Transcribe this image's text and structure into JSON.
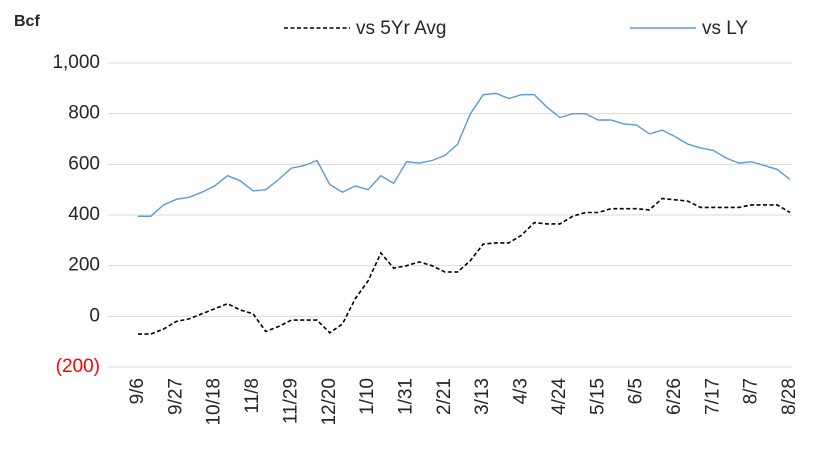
{
  "chart_data": {
    "type": "line",
    "y_label": "Bcf",
    "categories": [
      "9/6",
      null,
      null,
      "9/27",
      null,
      null,
      "10/18",
      null,
      null,
      "11/8",
      null,
      null,
      "11/29",
      null,
      null,
      "12/20",
      null,
      null,
      "1/10",
      null,
      null,
      "1/31",
      null,
      null,
      "2/21",
      null,
      null,
      "3/13",
      null,
      null,
      "4/3",
      null,
      null,
      "4/24",
      null,
      null,
      "5/15",
      null,
      null,
      "6/5",
      null,
      null,
      "6/26",
      null,
      null,
      "7/17",
      null,
      null,
      "8/7",
      null,
      null,
      "8/28"
    ],
    "series": [
      {
        "name": "vs 5Yr Avg",
        "color": "#000000",
        "dashed": true,
        "values": [
          -70,
          -70,
          -50,
          -20,
          -10,
          10,
          30,
          50,
          25,
          10,
          -60,
          -40,
          -15,
          -15,
          -15,
          -65,
          -30,
          70,
          140,
          250,
          190,
          200,
          215,
          200,
          175,
          175,
          220,
          285,
          290,
          290,
          320,
          370,
          365,
          365,
          395,
          410,
          410,
          425,
          425,
          425,
          420,
          465,
          460,
          455,
          430,
          430,
          430,
          430,
          440,
          440,
          440,
          410
        ]
      },
      {
        "name": "vs LY",
        "color": "#5b9bd5",
        "dashed": false,
        "values": [
          395,
          395,
          440,
          462,
          470,
          490,
          515,
          555,
          535,
          495,
          500,
          540,
          585,
          595,
          615,
          520,
          490,
          515,
          500,
          555,
          525,
          610,
          605,
          615,
          635,
          680,
          800,
          875,
          880,
          860,
          875,
          875,
          825,
          785,
          800,
          800,
          775,
          775,
          760,
          755,
          720,
          735,
          710,
          680,
          665,
          655,
          625,
          605,
          610,
          595,
          580,
          540
        ]
      }
    ],
    "ylim": [
      -200,
      1000
    ],
    "yticks": [
      {
        "value": -200,
        "label": "(200)",
        "color": "#ff0000"
      },
      0,
      200,
      400,
      600,
      800,
      {
        "value": 1000,
        "label": "1,000"
      }
    ],
    "grid": true
  }
}
